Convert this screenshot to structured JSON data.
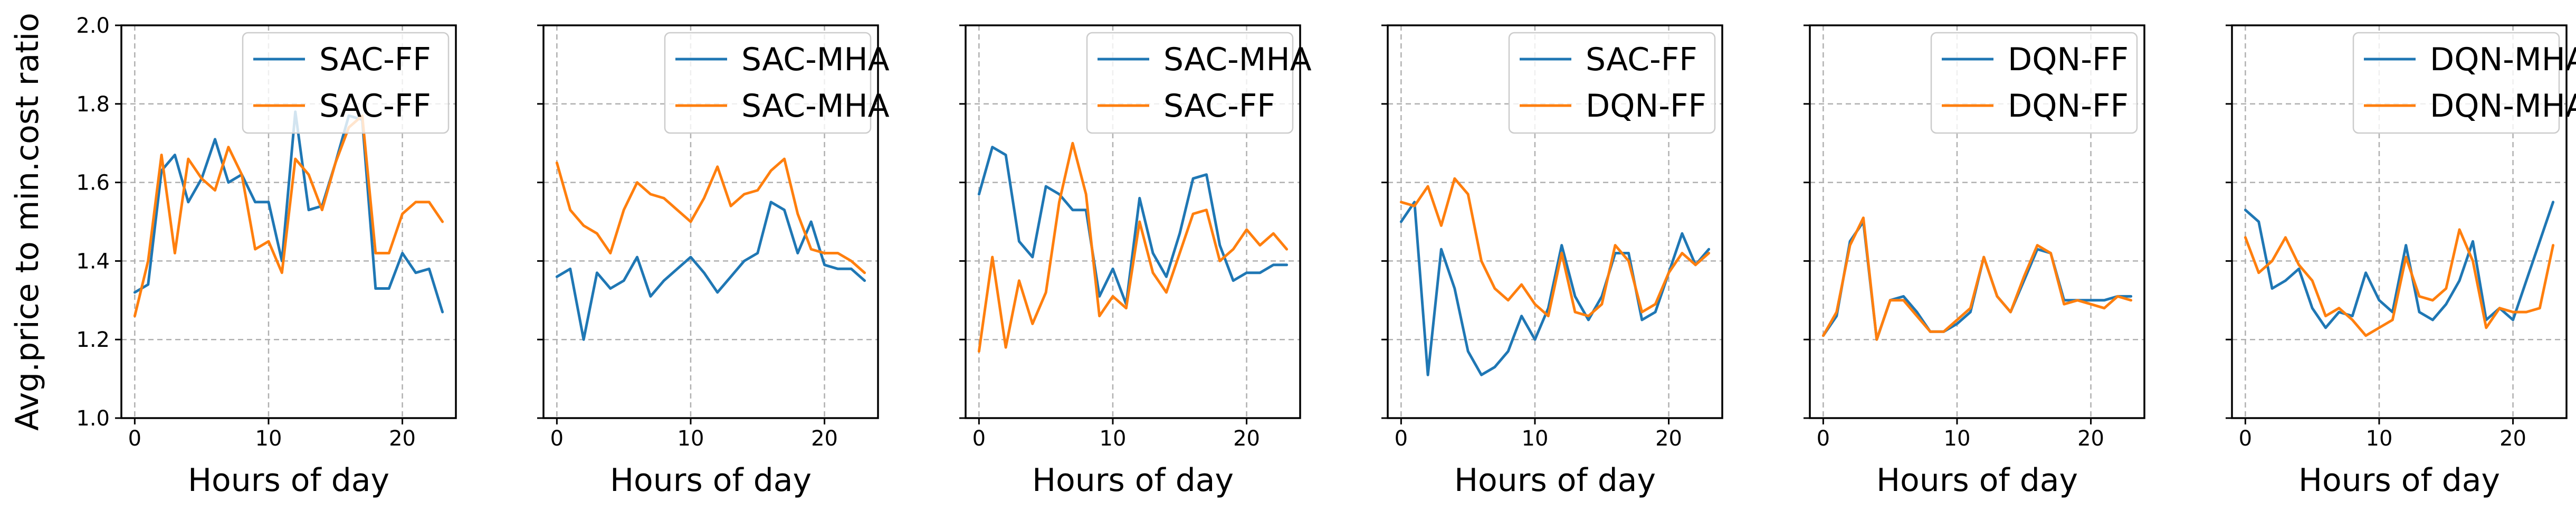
{
  "colors": {
    "series_1": "#1f77b4",
    "series_2": "#ff7f0e"
  },
  "chart_data": [
    {
      "type": "line",
      "ylabel": "Avg.price to min.cost ratio",
      "xlabel": "Hours of day",
      "xlim": [
        -1,
        24
      ],
      "ylim": [
        1.0,
        2.0
      ],
      "xticks": [
        0,
        10,
        20
      ],
      "yticks": [
        1.0,
        1.2,
        1.4,
        1.6,
        1.8,
        2.0
      ],
      "grid": true,
      "legend": "upper-right",
      "x": [
        0,
        1,
        2,
        3,
        4,
        5,
        6,
        7,
        8,
        9,
        10,
        11,
        12,
        13,
        14,
        15,
        16,
        17,
        18,
        19,
        20,
        21,
        22,
        23
      ],
      "series": [
        {
          "name": "SAC-FF",
          "color": "#1f77b4",
          "values": [
            1.32,
            1.34,
            1.63,
            1.67,
            1.55,
            1.61,
            1.71,
            1.6,
            1.62,
            1.55,
            1.55,
            1.4,
            1.78,
            1.53,
            1.54,
            1.65,
            1.77,
            1.76,
            1.33,
            1.33,
            1.42,
            1.37,
            1.38,
            1.27
          ]
        },
        {
          "name": "SAC-FF",
          "color": "#ff7f0e",
          "values": [
            1.26,
            1.4,
            1.67,
            1.42,
            1.66,
            1.61,
            1.58,
            1.69,
            1.62,
            1.43,
            1.45,
            1.37,
            1.66,
            1.62,
            1.53,
            1.65,
            1.74,
            1.77,
            1.42,
            1.42,
            1.52,
            1.55,
            1.55,
            1.5
          ]
        }
      ]
    },
    {
      "type": "line",
      "xlabel": "Hours of day",
      "xlim": [
        -1,
        24
      ],
      "ylim": [
        1.0,
        2.0
      ],
      "xticks": [
        0,
        10,
        20
      ],
      "yticks": [
        1.0,
        1.2,
        1.4,
        1.6,
        1.8,
        2.0
      ],
      "grid": true,
      "legend": "upper-right",
      "x": [
        0,
        1,
        2,
        3,
        4,
        5,
        6,
        7,
        8,
        9,
        10,
        11,
        12,
        13,
        14,
        15,
        16,
        17,
        18,
        19,
        20,
        21,
        22,
        23
      ],
      "series": [
        {
          "name": "SAC-MHA",
          "color": "#1f77b4",
          "values": [
            1.36,
            1.38,
            1.2,
            1.37,
            1.33,
            1.35,
            1.41,
            1.31,
            1.35,
            1.38,
            1.41,
            1.37,
            1.32,
            1.36,
            1.4,
            1.42,
            1.55,
            1.53,
            1.42,
            1.5,
            1.39,
            1.38,
            1.38,
            1.35
          ]
        },
        {
          "name": "SAC-MHA",
          "color": "#ff7f0e",
          "values": [
            1.65,
            1.53,
            1.49,
            1.47,
            1.42,
            1.53,
            1.6,
            1.57,
            1.56,
            1.53,
            1.5,
            1.56,
            1.64,
            1.54,
            1.57,
            1.58,
            1.63,
            1.66,
            1.52,
            1.43,
            1.42,
            1.42,
            1.4,
            1.37
          ]
        }
      ]
    },
    {
      "type": "line",
      "xlabel": "Hours of day",
      "xlim": [
        -1,
        24
      ],
      "ylim": [
        1.0,
        2.0
      ],
      "xticks": [
        0,
        10,
        20
      ],
      "yticks": [
        1.0,
        1.2,
        1.4,
        1.6,
        1.8,
        2.0
      ],
      "grid": true,
      "legend": "upper-right",
      "x": [
        0,
        1,
        2,
        3,
        4,
        5,
        6,
        7,
        8,
        9,
        10,
        11,
        12,
        13,
        14,
        15,
        16,
        17,
        18,
        19,
        20,
        21,
        22,
        23
      ],
      "series": [
        {
          "name": "SAC-MHA",
          "color": "#1f77b4",
          "values": [
            1.57,
            1.69,
            1.67,
            1.45,
            1.41,
            1.59,
            1.57,
            1.53,
            1.53,
            1.31,
            1.38,
            1.29,
            1.56,
            1.42,
            1.36,
            1.47,
            1.61,
            1.62,
            1.44,
            1.35,
            1.37,
            1.37,
            1.39,
            1.39
          ]
        },
        {
          "name": "SAC-FF",
          "color": "#ff7f0e",
          "values": [
            1.17,
            1.41,
            1.18,
            1.35,
            1.24,
            1.32,
            1.55,
            1.7,
            1.57,
            1.26,
            1.31,
            1.28,
            1.5,
            1.37,
            1.32,
            1.42,
            1.52,
            1.53,
            1.4,
            1.43,
            1.48,
            1.44,
            1.47,
            1.43
          ]
        }
      ]
    },
    {
      "type": "line",
      "xlabel": "Hours of day",
      "xlim": [
        -1,
        24
      ],
      "ylim": [
        1.0,
        2.0
      ],
      "xticks": [
        0,
        10,
        20
      ],
      "yticks": [
        1.0,
        1.2,
        1.4,
        1.6,
        1.8,
        2.0
      ],
      "grid": true,
      "legend": "upper-right",
      "x": [
        0,
        1,
        2,
        3,
        4,
        5,
        6,
        7,
        8,
        9,
        10,
        11,
        12,
        13,
        14,
        15,
        16,
        17,
        18,
        19,
        20,
        21,
        22,
        23
      ],
      "series": [
        {
          "name": "SAC-FF",
          "color": "#1f77b4",
          "values": [
            1.5,
            1.55,
            1.11,
            1.43,
            1.33,
            1.17,
            1.11,
            1.13,
            1.17,
            1.26,
            1.2,
            1.28,
            1.44,
            1.31,
            1.25,
            1.31,
            1.42,
            1.42,
            1.25,
            1.27,
            1.37,
            1.47,
            1.39,
            1.43
          ]
        },
        {
          "name": "DQN-FF",
          "color": "#ff7f0e",
          "values": [
            1.55,
            1.54,
            1.59,
            1.49,
            1.61,
            1.57,
            1.4,
            1.33,
            1.3,
            1.34,
            1.29,
            1.26,
            1.42,
            1.27,
            1.26,
            1.29,
            1.44,
            1.4,
            1.27,
            1.29,
            1.37,
            1.42,
            1.39,
            1.42
          ]
        }
      ]
    },
    {
      "type": "line",
      "xlabel": "Hours of day",
      "xlim": [
        -1,
        24
      ],
      "ylim": [
        1.0,
        2.0
      ],
      "xticks": [
        0,
        10,
        20
      ],
      "yticks": [
        1.0,
        1.2,
        1.4,
        1.6,
        1.8,
        2.0
      ],
      "grid": true,
      "legend": "upper-right",
      "x": [
        0,
        1,
        2,
        3,
        4,
        5,
        6,
        7,
        8,
        9,
        10,
        11,
        12,
        13,
        14,
        15,
        16,
        17,
        18,
        19,
        20,
        21,
        22,
        23
      ],
      "series": [
        {
          "name": "DQN-FF",
          "color": "#1f77b4",
          "values": [
            1.21,
            1.26,
            1.45,
            1.5,
            1.2,
            1.3,
            1.31,
            1.27,
            1.22,
            1.22,
            1.24,
            1.27,
            1.41,
            1.31,
            1.27,
            1.35,
            1.43,
            1.42,
            1.3,
            1.3,
            1.3,
            1.3,
            1.31,
            1.31
          ]
        },
        {
          "name": "DQN-FF",
          "color": "#ff7f0e",
          "values": [
            1.21,
            1.27,
            1.44,
            1.51,
            1.2,
            1.3,
            1.3,
            1.26,
            1.22,
            1.22,
            1.25,
            1.28,
            1.41,
            1.31,
            1.27,
            1.36,
            1.44,
            1.42,
            1.29,
            1.3,
            1.29,
            1.28,
            1.31,
            1.3
          ]
        }
      ]
    },
    {
      "type": "line",
      "xlabel": "Hours of day",
      "xlim": [
        -1,
        24
      ],
      "ylim": [
        1.0,
        2.0
      ],
      "xticks": [
        0,
        10,
        20
      ],
      "yticks": [
        1.0,
        1.2,
        1.4,
        1.6,
        1.8,
        2.0
      ],
      "grid": true,
      "legend": "upper-right",
      "x": [
        0,
        1,
        2,
        3,
        4,
        5,
        6,
        7,
        8,
        9,
        10,
        11,
        12,
        13,
        14,
        15,
        16,
        17,
        18,
        19,
        20,
        21,
        22,
        23
      ],
      "series": [
        {
          "name": "DQN-MHA",
          "color": "#1f77b4",
          "values": [
            1.53,
            1.5,
            1.33,
            1.35,
            1.38,
            1.28,
            1.23,
            1.27,
            1.26,
            1.37,
            1.3,
            1.27,
            1.44,
            1.27,
            1.25,
            1.29,
            1.35,
            1.45,
            1.25,
            1.28,
            1.25,
            1.35,
            1.45,
            1.55
          ]
        },
        {
          "name": "DQN-MHA",
          "color": "#ff7f0e",
          "values": [
            1.46,
            1.37,
            1.4,
            1.46,
            1.39,
            1.35,
            1.26,
            1.28,
            1.25,
            1.21,
            1.23,
            1.25,
            1.41,
            1.31,
            1.3,
            1.33,
            1.48,
            1.4,
            1.23,
            1.28,
            1.27,
            1.27,
            1.28,
            1.44
          ]
        }
      ]
    }
  ]
}
